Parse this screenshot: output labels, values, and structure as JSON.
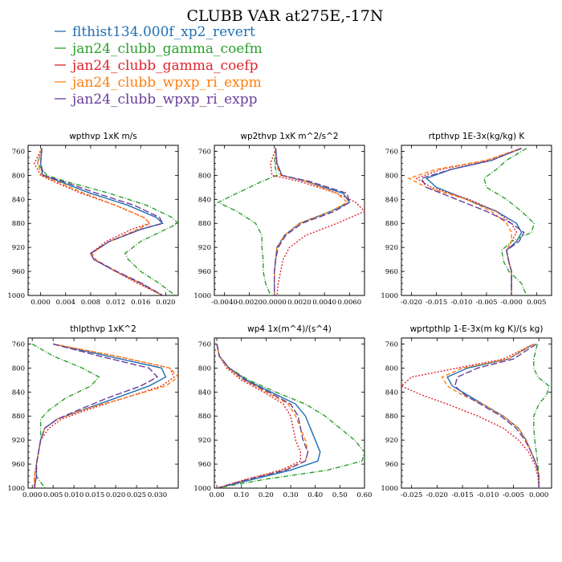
{
  "title": "CLUBB VAR at275E,-17N",
  "legend": [
    {
      "name": "flthist134.000f_xp2_revert",
      "color": "#1f6fb4",
      "dash": "solid"
    },
    {
      "name": "jan24_clubb_gamma_coefm",
      "color": "#2ca02c",
      "dash": "dashdot"
    },
    {
      "name": "jan24_clubb_gamma_coefp",
      "color": "#e0232b",
      "dash": "dot"
    },
    {
      "name": "jan24_clubb_wpxp_ri_expm",
      "color": "#ff7f0e",
      "dash": "dashed"
    },
    {
      "name": "jan24_clubb_wpxp_ri_expp",
      "color": "#6a3d9a",
      "dash": "longdash"
    }
  ],
  "chart_data": [
    {
      "type": "line",
      "title": "wpthvp  1xK m/s",
      "xlim": [
        -0.002,
        0.022
      ],
      "ylim": [
        1000,
        750
      ],
      "xticks": [
        "0.000",
        "0.004",
        "0.008",
        "0.012",
        "0.016",
        "0.020"
      ],
      "xtick_values": [
        0.0,
        0.004,
        0.008,
        0.012,
        0.016,
        0.02
      ],
      "yticks": [
        760,
        800,
        840,
        880,
        920,
        960,
        1000
      ],
      "levels": [
        755,
        780,
        800,
        810,
        830,
        850,
        870,
        880,
        890,
        910,
        930,
        940,
        960,
        980,
        1000
      ],
      "series": [
        {
          "values": [
            0.0002,
            0.0,
            0.0003,
            0.003,
            0.008,
            0.014,
            0.0185,
            0.0195,
            0.016,
            0.011,
            0.008,
            0.0085,
            0.012,
            0.016,
            0.0195
          ]
        },
        {
          "values": [
            0.0002,
            -0.0005,
            0.001,
            0.004,
            0.011,
            0.017,
            0.021,
            0.022,
            0.02,
            0.016,
            0.0135,
            0.014,
            0.016,
            0.019,
            0.0215
          ]
        },
        {
          "values": [
            0.0002,
            -0.001,
            0.0,
            0.002,
            0.0065,
            0.012,
            0.0165,
            0.0175,
            0.0145,
            0.0105,
            0.008,
            0.0085,
            0.012,
            0.0155,
            0.0195
          ]
        },
        {
          "values": [
            0.0002,
            -0.0005,
            0.0002,
            0.0025,
            0.007,
            0.012,
            0.0165,
            0.0175,
            0.0155,
            0.011,
            0.0082,
            0.0088,
            0.012,
            0.016,
            0.0195
          ]
        },
        {
          "values": [
            0.0002,
            0.0,
            0.0005,
            0.0035,
            0.009,
            0.015,
            0.019,
            0.0195,
            0.016,
            0.011,
            0.008,
            0.0085,
            0.0122,
            0.0162,
            0.0195
          ]
        }
      ]
    },
    {
      "type": "line",
      "title": "wp2thvp  1xK m^2/s^2",
      "xlim": [
        -0.0048,
        0.0072
      ],
      "ylim": [
        1000,
        750
      ],
      "xticks": [
        "-0.0040",
        "-0.0020",
        "0.0000",
        "0.0020",
        "0.0040",
        "0.0060"
      ],
      "xtick_values": [
        -0.004,
        -0.002,
        0.0,
        0.002,
        0.004,
        0.006
      ],
      "yticks": [
        760,
        800,
        840,
        880,
        920,
        960,
        1000
      ],
      "levels": [
        755,
        780,
        800,
        810,
        830,
        845,
        860,
        880,
        900,
        920,
        940,
        960,
        980,
        1000
      ],
      "series": [
        {
          "values": [
            0.0001,
            0.0002,
            0.0006,
            0.0025,
            0.0055,
            0.006,
            0.0045,
            0.002,
            0.0008,
            0.0002,
            0.0001,
            0.0,
            0.0,
            0.0
          ]
        },
        {
          "values": [
            0.0001,
            0.0,
            0.0002,
            -0.001,
            -0.003,
            -0.0045,
            -0.003,
            -0.0015,
            -0.001,
            -0.001,
            -0.0009,
            -0.0009,
            -0.0007,
            -0.0003
          ]
        },
        {
          "values": [
            0.0001,
            -0.0003,
            -0.0002,
            0.002,
            0.005,
            0.0065,
            0.0072,
            0.005,
            0.0025,
            0.0012,
            0.0007,
            0.0005,
            0.0003,
            0.0002
          ]
        },
        {
          "values": [
            0.0001,
            0.0001,
            0.0005,
            0.0025,
            0.005,
            0.0058,
            0.0045,
            0.002,
            0.0008,
            0.0002,
            0.0001,
            0.0,
            0.0,
            0.0
          ]
        },
        {
          "values": [
            0.0001,
            0.0002,
            0.0006,
            0.0028,
            0.0058,
            0.006,
            0.0048,
            0.0022,
            0.0009,
            0.0003,
            0.0001,
            0.0,
            0.0,
            0.0
          ]
        }
      ]
    },
    {
      "type": "line",
      "title": "rtpthvp  1E-3x(kg/kg) K",
      "xlim": [
        -0.022,
        0.008
      ],
      "ylim": [
        1000,
        750
      ],
      "xticks": [
        "-0.020",
        "-0.015",
        "-0.010",
        "-0.005",
        "-0.000",
        "0.005"
      ],
      "xtick_values": [
        -0.02,
        -0.015,
        -0.01,
        -0.005,
        0.0,
        0.005
      ],
      "yticks": [
        760,
        800,
        840,
        880,
        920,
        960,
        1000
      ],
      "levels": [
        755,
        775,
        790,
        805,
        820,
        840,
        860,
        880,
        895,
        910,
        925,
        945,
        960,
        980,
        1000
      ],
      "series": [
        {
          "values": [
            0.002,
            -0.004,
            -0.012,
            -0.017,
            -0.015,
            -0.009,
            -0.003,
            0.001,
            0.002,
            0.001,
            -0.001,
            -0.0005,
            0.0,
            0.0,
            0.0
          ]
        },
        {
          "values": [
            0.003,
            -0.001,
            -0.003,
            -0.0055,
            -0.005,
            -0.001,
            0.002,
            0.0045,
            0.004,
            0.0,
            -0.002,
            -0.0015,
            -0.0005,
            0.002,
            0.003
          ]
        },
        {
          "values": [
            0.002,
            -0.005,
            -0.014,
            -0.019,
            -0.016,
            -0.0085,
            -0.003,
            0.0,
            0.001,
            0.0,
            -0.001,
            -0.0005,
            0.0,
            0.0,
            0.0
          ]
        },
        {
          "values": [
            0.002,
            -0.005,
            -0.015,
            -0.0205,
            -0.017,
            -0.009,
            -0.004,
            -0.001,
            0.0,
            0.0,
            -0.001,
            -0.0005,
            0.0,
            0.0,
            0.0
          ]
        },
        {
          "values": [
            0.002,
            -0.004,
            -0.012,
            -0.018,
            -0.017,
            -0.011,
            -0.005,
            0.0,
            0.0025,
            0.0015,
            -0.001,
            -0.0005,
            0.0,
            0.0,
            0.0
          ]
        }
      ]
    },
    {
      "type": "line",
      "title": "thlpthvp  1xK^2",
      "xlim": [
        -0.001,
        0.035
      ],
      "ylim": [
        1000,
        750
      ],
      "xticks": [
        "0.000",
        "0.005",
        "0.010",
        "0.015",
        "0.020",
        "0.025",
        "0.030"
      ],
      "xtick_values": [
        0.0,
        0.005,
        0.01,
        0.015,
        0.02,
        0.025,
        0.03
      ],
      "yticks": [
        760,
        800,
        840,
        880,
        920,
        960,
        1000
      ],
      "levels": [
        760,
        780,
        800,
        815,
        830,
        850,
        870,
        885,
        900,
        920,
        940,
        960,
        980,
        1000
      ],
      "series": [
        {
          "values": [
            0.005,
            0.018,
            0.031,
            0.032,
            0.028,
            0.02,
            0.012,
            0.006,
            0.003,
            0.002,
            0.0015,
            0.001,
            0.001,
            0.0005
          ]
        },
        {
          "values": [
            0.0,
            0.005,
            0.012,
            0.016,
            0.014,
            0.008,
            0.004,
            0.002,
            0.002,
            0.002,
            0.0015,
            0.001,
            0.001,
            0.003
          ]
        },
        {
          "values": [
            0.005,
            0.02,
            0.033,
            0.034,
            0.031,
            0.022,
            0.013,
            0.007,
            0.004,
            0.002,
            0.0015,
            0.001,
            0.0005,
            0.0005
          ]
        },
        {
          "values": [
            0.005,
            0.02,
            0.033,
            0.035,
            0.032,
            0.022,
            0.012,
            0.006,
            0.003,
            0.002,
            0.0015,
            0.001,
            0.0005,
            0.0005
          ]
        },
        {
          "values": [
            0.005,
            0.016,
            0.028,
            0.03,
            0.026,
            0.018,
            0.011,
            0.006,
            0.003,
            0.002,
            0.0015,
            0.001,
            0.001,
            0.0005
          ]
        }
      ]
    },
    {
      "type": "line",
      "title": "wp4  1x(m^4)/(s^4)",
      "xlim": [
        -0.01,
        0.6
      ],
      "ylim": [
        1000,
        750
      ],
      "xticks": [
        "0.00",
        "0.10",
        "0.20",
        "0.30",
        "0.40",
        "0.50",
        "0.60"
      ],
      "xtick_values": [
        0.0,
        0.1,
        0.2,
        0.3,
        0.4,
        0.5,
        0.6
      ],
      "yticks": [
        760,
        800,
        840,
        880,
        920,
        960,
        1000
      ],
      "levels": [
        760,
        780,
        800,
        820,
        840,
        860,
        880,
        900,
        920,
        940,
        955,
        970,
        985,
        1000
      ],
      "series": [
        {
          "values": [
            0.0,
            0.01,
            0.05,
            0.12,
            0.22,
            0.32,
            0.36,
            0.38,
            0.4,
            0.42,
            0.41,
            0.3,
            0.15,
            0.0
          ]
        },
        {
          "values": [
            0.0,
            0.01,
            0.05,
            0.13,
            0.24,
            0.36,
            0.44,
            0.5,
            0.56,
            0.6,
            0.59,
            0.45,
            0.2,
            0.0
          ]
        },
        {
          "values": [
            0.0,
            0.01,
            0.04,
            0.1,
            0.19,
            0.27,
            0.3,
            0.31,
            0.32,
            0.34,
            0.34,
            0.26,
            0.12,
            0.0
          ]
        },
        {
          "values": [
            0.0,
            0.01,
            0.045,
            0.11,
            0.2,
            0.29,
            0.32,
            0.34,
            0.36,
            0.37,
            0.36,
            0.27,
            0.13,
            0.0
          ]
        },
        {
          "values": [
            0.0,
            0.01,
            0.05,
            0.115,
            0.21,
            0.3,
            0.33,
            0.34,
            0.35,
            0.37,
            0.36,
            0.28,
            0.13,
            0.0
          ]
        }
      ]
    },
    {
      "type": "line",
      "title": "wprtpthlp  1-E-3x(m kg K)/(s kg)",
      "xlim": [
        -0.027,
        0.0025
      ],
      "ylim": [
        1000,
        750
      ],
      "xticks": [
        "-0.025",
        "-0.020",
        "-0.015",
        "-0.010",
        "-0.005",
        "0.000"
      ],
      "xtick_values": [
        -0.025,
        -0.02,
        -0.015,
        -0.01,
        -0.005,
        0.0
      ],
      "yticks": [
        760,
        800,
        840,
        880,
        920,
        960,
        1000
      ],
      "levels": [
        760,
        785,
        800,
        815,
        830,
        845,
        860,
        880,
        900,
        920,
        940,
        960,
        980,
        1000
      ],
      "series": [
        {
          "values": [
            -0.001,
            -0.006,
            -0.014,
            -0.018,
            -0.017,
            -0.014,
            -0.011,
            -0.007,
            -0.004,
            -0.0025,
            -0.0015,
            -0.0005,
            0.0,
            0.0
          ]
        },
        {
          "values": [
            -0.0003,
            -0.001,
            -0.001,
            -0.0002,
            0.002,
            0.0015,
            0.0,
            -0.001,
            -0.001,
            -0.0008,
            -0.0005,
            -0.0002,
            0.0,
            0.0
          ]
        },
        {
          "values": [
            -0.001,
            -0.007,
            -0.016,
            -0.025,
            -0.027,
            -0.023,
            -0.018,
            -0.012,
            -0.007,
            -0.004,
            -0.002,
            -0.0008,
            -0.0002,
            0.0
          ]
        },
        {
          "values": [
            -0.001,
            -0.006,
            -0.015,
            -0.019,
            -0.018,
            -0.015,
            -0.011,
            -0.007,
            -0.004,
            -0.0025,
            -0.0015,
            -0.0005,
            0.0,
            0.0
          ]
        },
        {
          "values": [
            -0.0005,
            -0.005,
            -0.012,
            -0.016,
            -0.0165,
            -0.0145,
            -0.0115,
            -0.0075,
            -0.0045,
            -0.0027,
            -0.0015,
            -0.0005,
            0.0,
            0.0
          ]
        }
      ]
    }
  ]
}
